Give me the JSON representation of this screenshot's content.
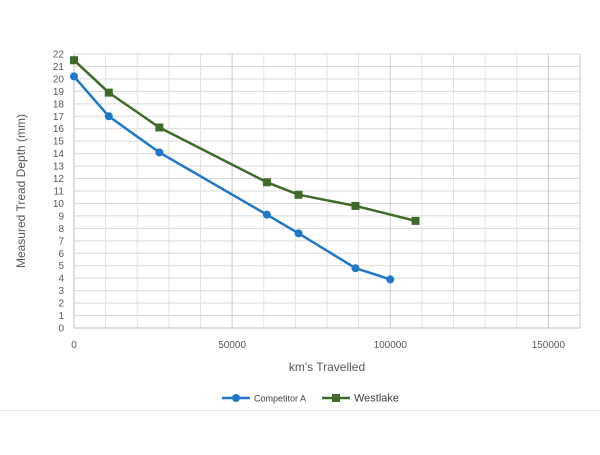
{
  "chart_data": {
    "type": "line",
    "title": "",
    "xlabel": "km's Travelled",
    "ylabel": "Measured Tread Depth (mm)",
    "xlim": [
      0,
      160000
    ],
    "ylim": [
      0,
      22
    ],
    "x_ticks": [
      0,
      50000,
      100000,
      150000
    ],
    "y_ticks": [
      0,
      1,
      2,
      3,
      4,
      5,
      6,
      7,
      8,
      9,
      10,
      11,
      12,
      13,
      14,
      15,
      16,
      17,
      18,
      19,
      20,
      21,
      22
    ],
    "grid": true,
    "legend_position": "bottom",
    "series": [
      {
        "name": "Competitor A",
        "color": "#1f77c8",
        "marker": "circle",
        "x": [
          0,
          11000,
          27000,
          61000,
          71000,
          89000,
          100000
        ],
        "y": [
          20.2,
          17.0,
          14.1,
          9.1,
          7.6,
          4.8,
          3.9
        ]
      },
      {
        "name": "Westlake",
        "color": "#3f6b2a",
        "marker": "square",
        "x": [
          0,
          11000,
          27000,
          61000,
          71000,
          89000,
          108000
        ],
        "y": [
          21.5,
          18.9,
          16.1,
          11.7,
          10.7,
          9.8,
          8.6
        ]
      }
    ]
  }
}
